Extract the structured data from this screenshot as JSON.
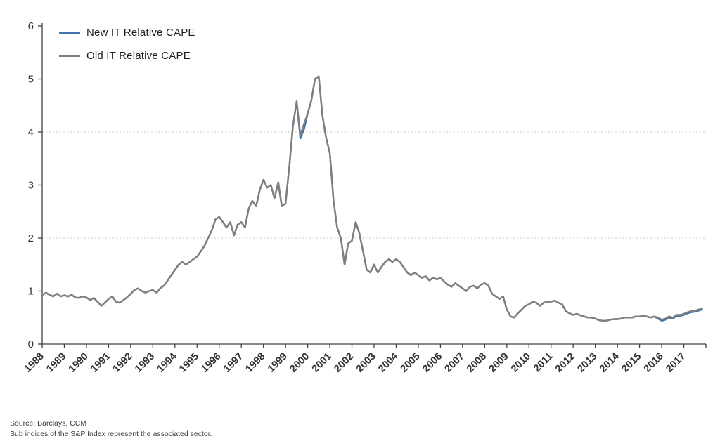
{
  "chart_data": {
    "type": "line",
    "title": "",
    "xlabel": "",
    "ylabel": "",
    "ylim": [
      0,
      6
    ],
    "xlim": [
      1988,
      2018
    ],
    "y_ticks": [
      0,
      1,
      2,
      3,
      4,
      5,
      6
    ],
    "grid_y": [
      1,
      2,
      3,
      4,
      5
    ],
    "grid": "horizontal-dotted",
    "legend_position": "top-left",
    "x_ticks": [
      1988,
      1989,
      1990,
      1991,
      1992,
      1993,
      1994,
      1995,
      1996,
      1997,
      1998,
      1999,
      2000,
      2001,
      2002,
      2003,
      2004,
      2005,
      2006,
      2007,
      2008,
      2009,
      2010,
      2011,
      2012,
      2013,
      2014,
      2015,
      2016,
      2017
    ],
    "x": [
      1988,
      1988.17,
      1988.33,
      1988.5,
      1988.67,
      1988.83,
      1989,
      1989.17,
      1989.33,
      1989.5,
      1989.67,
      1989.83,
      1990,
      1990.17,
      1990.33,
      1990.5,
      1990.67,
      1990.83,
      1991,
      1991.17,
      1991.33,
      1991.5,
      1991.67,
      1991.83,
      1992,
      1992.17,
      1992.33,
      1992.5,
      1992.67,
      1992.83,
      1993,
      1993.17,
      1993.33,
      1993.5,
      1993.67,
      1993.83,
      1994,
      1994.17,
      1994.33,
      1994.5,
      1994.67,
      1994.83,
      1995,
      1995.17,
      1995.33,
      1995.5,
      1995.67,
      1995.83,
      1996,
      1996.17,
      1996.33,
      1996.5,
      1996.67,
      1996.83,
      1997,
      1997.17,
      1997.33,
      1997.5,
      1997.67,
      1997.83,
      1998,
      1998.17,
      1998.33,
      1998.5,
      1998.67,
      1998.83,
      1999,
      1999.17,
      1999.33,
      1999.5,
      1999.67,
      1999.83,
      2000,
      2000.17,
      2000.33,
      2000.5,
      2000.67,
      2000.83,
      2001,
      2001.17,
      2001.33,
      2001.5,
      2001.67,
      2001.83,
      2002,
      2002.17,
      2002.33,
      2002.5,
      2002.67,
      2002.83,
      2003,
      2003.17,
      2003.33,
      2003.5,
      2003.67,
      2003.83,
      2004,
      2004.17,
      2004.33,
      2004.5,
      2004.67,
      2004.83,
      2005,
      2005.17,
      2005.33,
      2005.5,
      2005.67,
      2005.83,
      2006,
      2006.17,
      2006.33,
      2006.5,
      2006.67,
      2006.83,
      2007,
      2007.17,
      2007.33,
      2007.5,
      2007.67,
      2007.83,
      2008,
      2008.17,
      2008.33,
      2008.5,
      2008.67,
      2008.83,
      2009,
      2009.17,
      2009.33,
      2009.5,
      2009.67,
      2009.83,
      2010,
      2010.17,
      2010.33,
      2010.5,
      2010.67,
      2010.83,
      2011,
      2011.17,
      2011.33,
      2011.5,
      2011.67,
      2011.83,
      2012,
      2012.17,
      2012.33,
      2012.5,
      2012.67,
      2012.83,
      2013,
      2013.17,
      2013.33,
      2013.5,
      2013.67,
      2013.83,
      2014,
      2014.17,
      2014.33,
      2014.5,
      2014.67,
      2014.83,
      2015,
      2015.17,
      2015.33,
      2015.5,
      2015.67,
      2015.83,
      2016,
      2016.17,
      2016.33,
      2016.5,
      2016.67,
      2016.83,
      2017,
      2017.17,
      2017.33,
      2017.5,
      2017.67,
      2017.83
    ],
    "series": [
      {
        "name": "New IT Relative CAPE",
        "color": "#4472A8",
        "values": [
          0.92,
          0.97,
          0.93,
          0.9,
          0.95,
          0.9,
          0.92,
          0.9,
          0.93,
          0.88,
          0.87,
          0.9,
          0.88,
          0.83,
          0.87,
          0.8,
          0.72,
          0.78,
          0.85,
          0.9,
          0.8,
          0.78,
          0.83,
          0.88,
          0.95,
          1.02,
          1.05,
          1.0,
          0.97,
          1.0,
          1.02,
          0.97,
          1.05,
          1.1,
          1.2,
          1.3,
          1.4,
          1.5,
          1.55,
          1.5,
          1.55,
          1.6,
          1.65,
          1.75,
          1.85,
          2.0,
          2.15,
          2.35,
          2.4,
          2.3,
          2.2,
          2.3,
          2.05,
          2.25,
          2.3,
          2.2,
          2.55,
          2.7,
          2.6,
          2.9,
          3.1,
          2.95,
          3.0,
          2.75,
          3.05,
          2.6,
          2.65,
          3.35,
          4.1,
          4.58,
          3.88,
          4.05,
          4.35,
          4.6,
          5.0,
          5.05,
          4.3,
          3.9,
          3.6,
          2.7,
          2.2,
          2.0,
          1.5,
          1.9,
          1.95,
          2.3,
          2.1,
          1.75,
          1.4,
          1.35,
          1.5,
          1.35,
          1.45,
          1.55,
          1.6,
          1.55,
          1.6,
          1.55,
          1.45,
          1.35,
          1.3,
          1.35,
          1.3,
          1.25,
          1.28,
          1.2,
          1.25,
          1.22,
          1.25,
          1.18,
          1.12,
          1.08,
          1.15,
          1.1,
          1.05,
          1.0,
          1.08,
          1.1,
          1.05,
          1.12,
          1.15,
          1.1,
          0.95,
          0.9,
          0.85,
          0.9,
          0.65,
          0.52,
          0.5,
          0.58,
          0.65,
          0.72,
          0.75,
          0.8,
          0.78,
          0.72,
          0.78,
          0.8,
          0.8,
          0.82,
          0.78,
          0.75,
          0.62,
          0.58,
          0.55,
          0.57,
          0.54,
          0.52,
          0.5,
          0.5,
          0.48,
          0.45,
          0.44,
          0.44,
          0.46,
          0.47,
          0.47,
          0.48,
          0.5,
          0.5,
          0.5,
          0.52,
          0.52,
          0.53,
          0.52,
          0.5,
          0.52,
          0.48,
          0.44,
          0.46,
          0.5,
          0.48,
          0.53,
          0.53,
          0.55,
          0.58,
          0.6,
          0.61,
          0.63,
          0.65
        ]
      },
      {
        "name": "Old IT Relative CAPE",
        "color": "#7F7F7F",
        "values": [
          0.92,
          0.97,
          0.93,
          0.9,
          0.95,
          0.9,
          0.92,
          0.9,
          0.93,
          0.88,
          0.87,
          0.9,
          0.88,
          0.83,
          0.87,
          0.8,
          0.72,
          0.78,
          0.85,
          0.9,
          0.8,
          0.78,
          0.83,
          0.88,
          0.95,
          1.02,
          1.05,
          1.0,
          0.97,
          1.0,
          1.02,
          0.97,
          1.05,
          1.1,
          1.2,
          1.3,
          1.4,
          1.5,
          1.55,
          1.5,
          1.55,
          1.6,
          1.65,
          1.75,
          1.85,
          2.0,
          2.15,
          2.35,
          2.4,
          2.3,
          2.2,
          2.3,
          2.05,
          2.25,
          2.3,
          2.2,
          2.55,
          2.7,
          2.6,
          2.9,
          3.1,
          2.95,
          3.0,
          2.75,
          3.05,
          2.6,
          2.65,
          3.35,
          4.1,
          4.58,
          3.95,
          4.15,
          4.35,
          4.6,
          5.0,
          5.05,
          4.3,
          3.9,
          3.6,
          2.7,
          2.2,
          2.0,
          1.5,
          1.9,
          1.95,
          2.3,
          2.1,
          1.75,
          1.4,
          1.35,
          1.5,
          1.35,
          1.45,
          1.55,
          1.6,
          1.55,
          1.6,
          1.55,
          1.45,
          1.35,
          1.3,
          1.35,
          1.3,
          1.25,
          1.28,
          1.2,
          1.25,
          1.22,
          1.25,
          1.18,
          1.12,
          1.08,
          1.15,
          1.1,
          1.05,
          1.0,
          1.08,
          1.1,
          1.05,
          1.12,
          1.15,
          1.1,
          0.95,
          0.9,
          0.85,
          0.9,
          0.65,
          0.52,
          0.5,
          0.58,
          0.65,
          0.72,
          0.75,
          0.8,
          0.78,
          0.72,
          0.78,
          0.8,
          0.8,
          0.82,
          0.78,
          0.75,
          0.62,
          0.58,
          0.55,
          0.57,
          0.54,
          0.52,
          0.5,
          0.5,
          0.48,
          0.45,
          0.44,
          0.44,
          0.46,
          0.47,
          0.47,
          0.48,
          0.5,
          0.5,
          0.5,
          0.52,
          0.52,
          0.53,
          0.52,
          0.5,
          0.52,
          0.5,
          0.46,
          0.48,
          0.52,
          0.5,
          0.55,
          0.55,
          0.57,
          0.6,
          0.62,
          0.63,
          0.65,
          0.67
        ]
      }
    ]
  },
  "axis": {
    "line_color": "#404040",
    "label_color": "#333333",
    "grid_color": "#c9c9c9"
  },
  "footer": {
    "source": "Source: Barclays, CCM",
    "note": "Sub indices of the S&P Index represent the associated sector."
  }
}
